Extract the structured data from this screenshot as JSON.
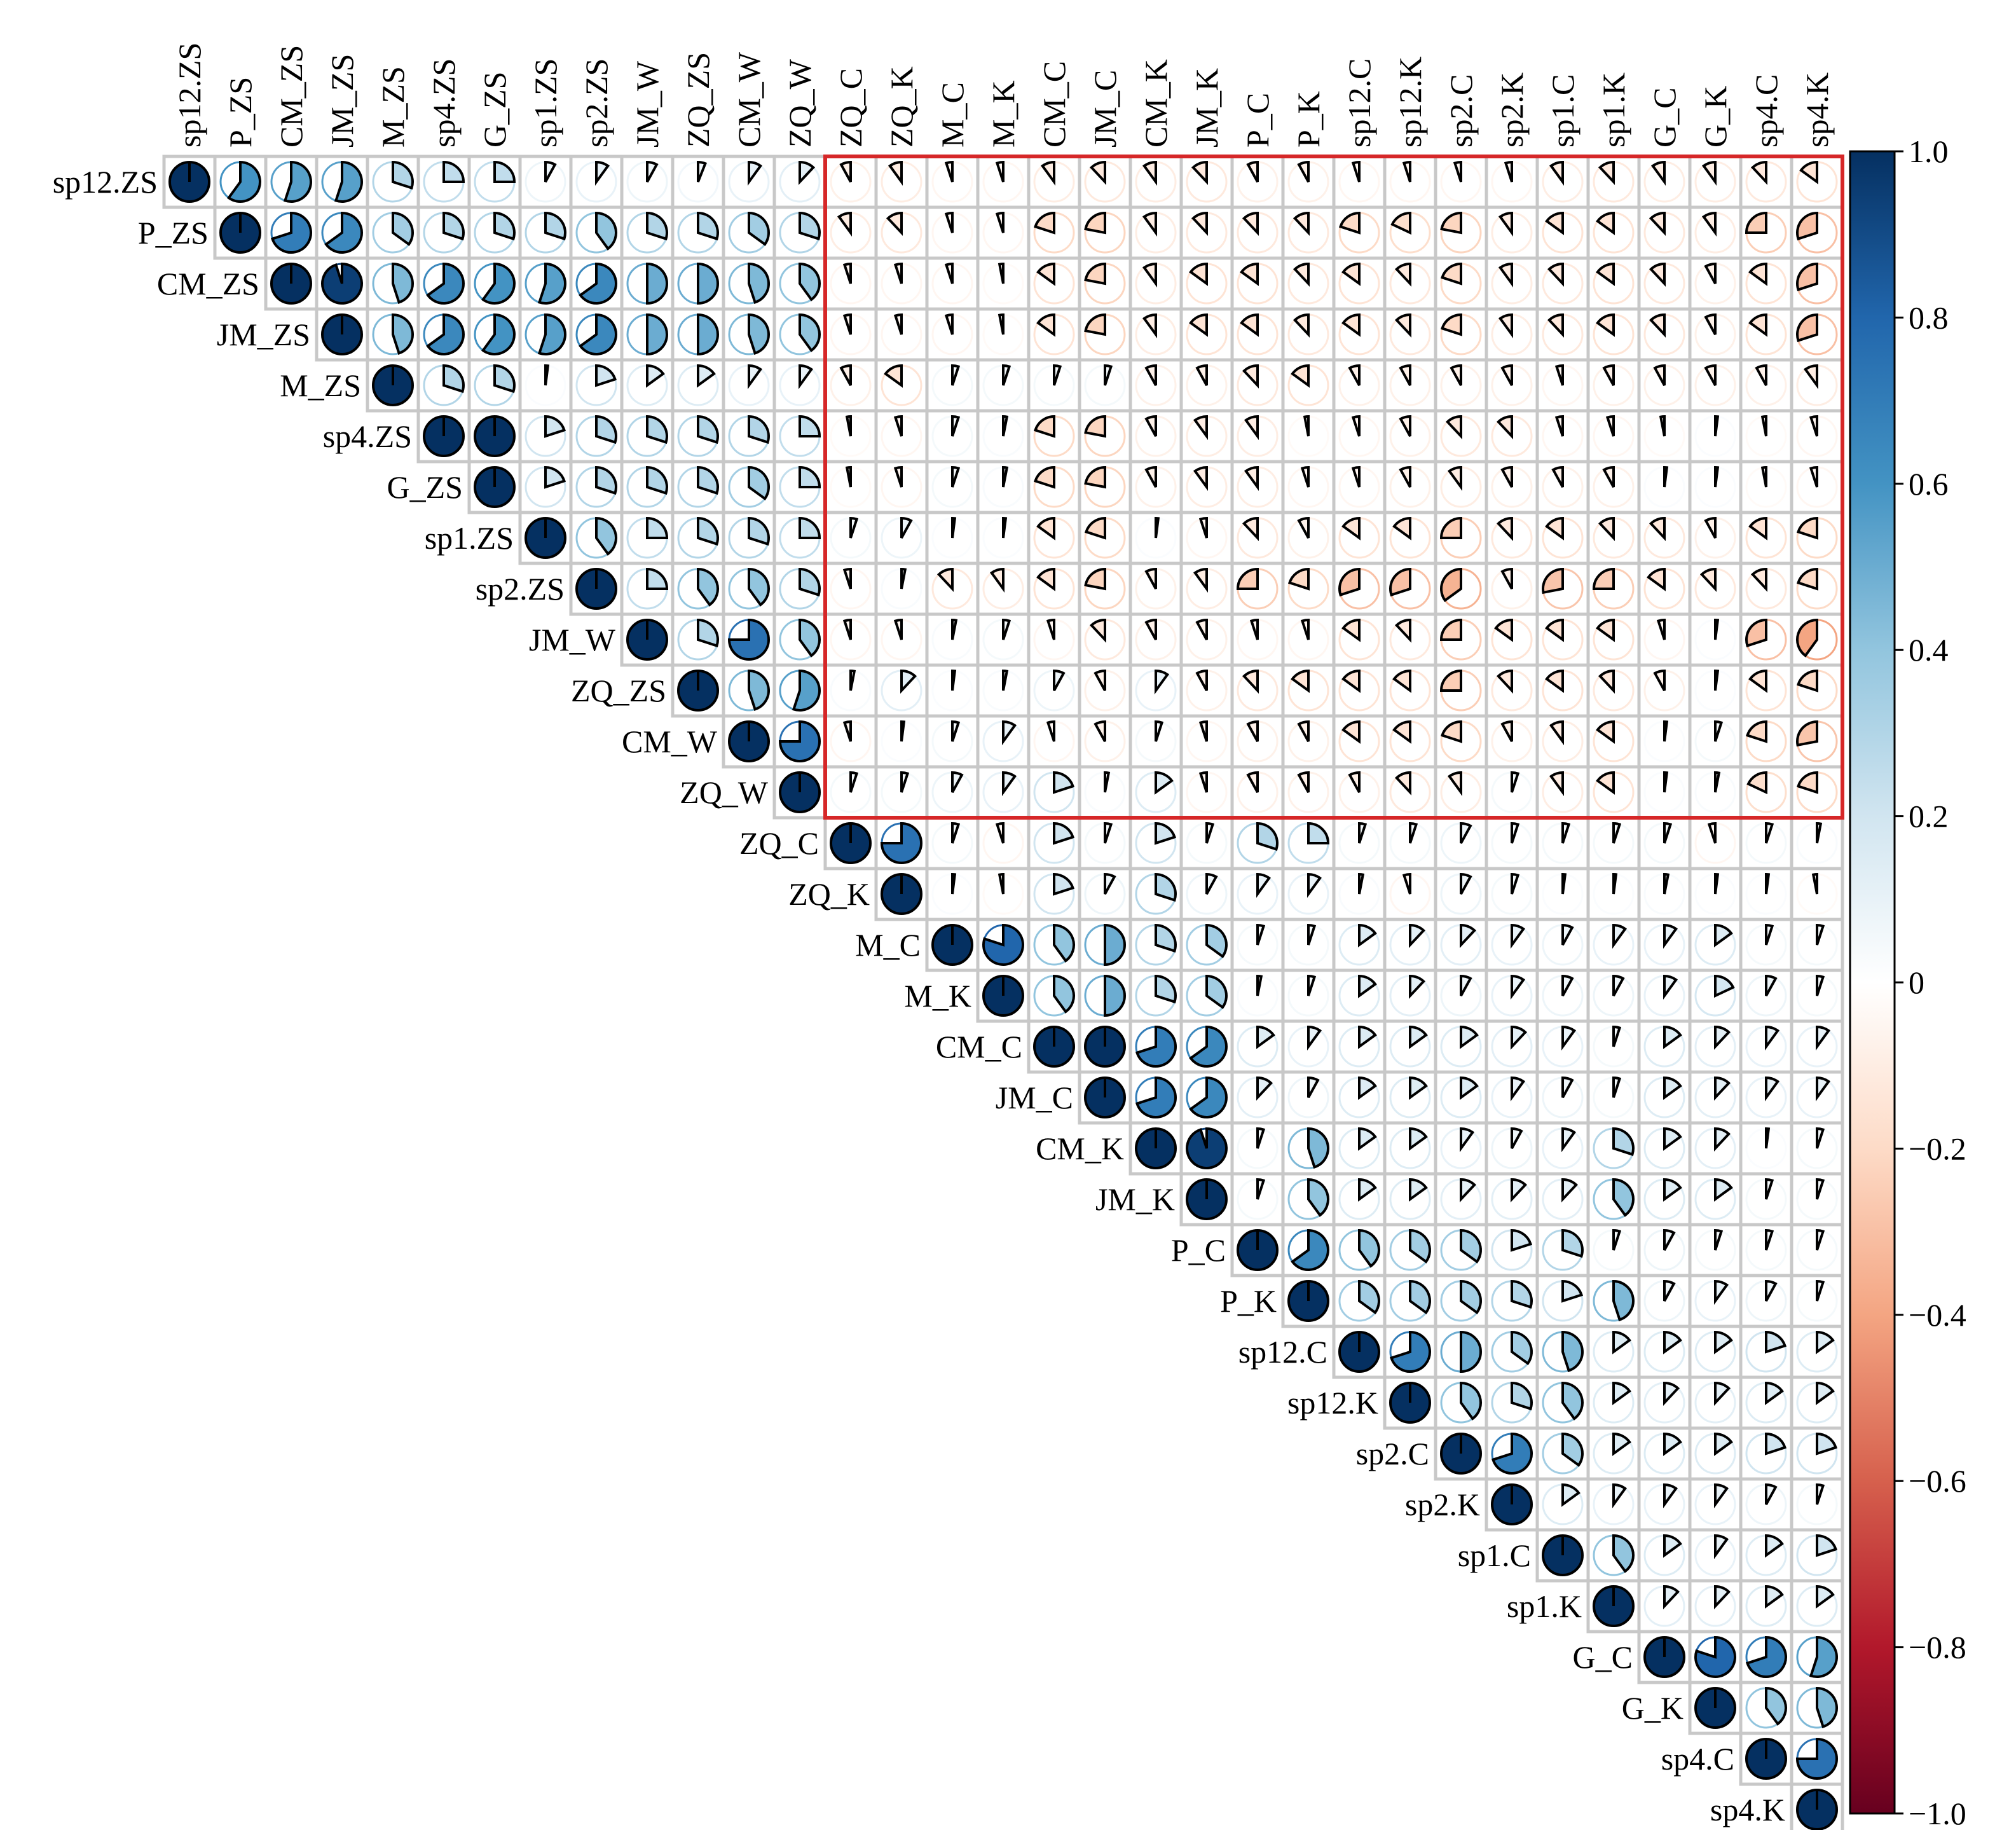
{
  "chart_data": {
    "type": "heatmap",
    "style": "upper-triangle correlation matrix, pie glyphs",
    "variables": [
      "sp12.ZS",
      "P_ZS",
      "CM_ZS",
      "JM_ZS",
      "M_ZS",
      "sp4.ZS",
      "G_ZS",
      "sp1.ZS",
      "sp2.ZS",
      "JM_W",
      "ZQ_ZS",
      "CM_W",
      "ZQ_W",
      "ZQ_C",
      "ZQ_K",
      "M_C",
      "M_K",
      "CM_C",
      "JM_C",
      "CM_K",
      "JM_K",
      "P_C",
      "P_K",
      "sp12.C",
      "sp12.K",
      "sp2.C",
      "sp2.K",
      "sp1.C",
      "sp1.K",
      "G_C",
      "G_K",
      "sp4.C",
      "sp4.K"
    ],
    "matrix": [
      [
        1.0,
        0.6,
        0.55,
        0.55,
        0.3,
        0.25,
        0.25,
        0.08,
        0.1,
        0.08,
        0.06,
        0.1,
        0.12,
        -0.08,
        -0.1,
        -0.05,
        -0.05,
        -0.1,
        -0.12,
        -0.1,
        -0.12,
        -0.08,
        -0.08,
        -0.05,
        -0.05,
        -0.05,
        -0.05,
        -0.1,
        -0.12,
        -0.1,
        -0.1,
        -0.12,
        -0.15
      ],
      [
        0.6,
        1.0,
        0.7,
        0.65,
        0.35,
        0.3,
        0.3,
        0.3,
        0.4,
        0.3,
        0.3,
        0.35,
        0.3,
        -0.1,
        -0.12,
        -0.05,
        -0.05,
        -0.2,
        -0.22,
        -0.1,
        -0.12,
        -0.12,
        -0.12,
        -0.2,
        -0.18,
        -0.22,
        -0.1,
        -0.15,
        -0.15,
        -0.12,
        -0.1,
        -0.25,
        -0.3
      ],
      [
        0.55,
        0.7,
        1.0,
        0.95,
        0.45,
        0.65,
        0.6,
        0.55,
        0.65,
        0.5,
        0.5,
        0.45,
        0.4,
        -0.05,
        -0.05,
        -0.05,
        -0.03,
        -0.15,
        -0.22,
        -0.1,
        -0.15,
        -0.15,
        -0.12,
        -0.15,
        -0.12,
        -0.2,
        -0.1,
        -0.12,
        -0.15,
        -0.12,
        -0.08,
        -0.15,
        -0.3
      ],
      [
        0.55,
        0.65,
        0.95,
        1.0,
        0.45,
        0.65,
        0.6,
        0.55,
        0.65,
        0.5,
        0.5,
        0.45,
        0.4,
        -0.05,
        -0.05,
        -0.05,
        -0.03,
        -0.15,
        -0.22,
        -0.1,
        -0.15,
        -0.15,
        -0.12,
        -0.15,
        -0.12,
        -0.2,
        -0.1,
        -0.12,
        -0.15,
        -0.12,
        -0.08,
        -0.15,
        -0.3
      ],
      [
        0.3,
        0.35,
        0.45,
        0.45,
        1.0,
        0.3,
        0.3,
        0.02,
        0.2,
        0.15,
        0.15,
        0.1,
        0.1,
        -0.08,
        -0.15,
        0.05,
        0.05,
        0.05,
        0.05,
        -0.08,
        -0.08,
        -0.12,
        -0.15,
        -0.08,
        -0.08,
        -0.08,
        -0.08,
        -0.05,
        -0.08,
        -0.08,
        -0.08,
        -0.08,
        -0.1
      ],
      [
        0.25,
        0.3,
        0.65,
        0.65,
        0.3,
        1.0,
        1.0,
        0.2,
        0.3,
        0.3,
        0.3,
        0.3,
        0.25,
        -0.03,
        -0.05,
        0.05,
        0.03,
        -0.2,
        -0.22,
        -0.08,
        -0.1,
        -0.1,
        -0.03,
        -0.05,
        -0.08,
        -0.12,
        -0.12,
        -0.05,
        -0.05,
        -0.03,
        0.02,
        -0.03,
        -0.05
      ],
      [
        0.25,
        0.3,
        0.6,
        0.6,
        0.3,
        1.0,
        1.0,
        0.2,
        0.3,
        0.3,
        0.3,
        0.35,
        0.25,
        -0.03,
        -0.05,
        0.05,
        0.03,
        -0.2,
        -0.22,
        -0.08,
        -0.1,
        -0.1,
        -0.05,
        -0.05,
        -0.08,
        -0.1,
        -0.08,
        -0.08,
        -0.08,
        0.02,
        0.02,
        -0.03,
        -0.05
      ],
      [
        0.08,
        0.3,
        0.55,
        0.55,
        0.02,
        0.2,
        0.2,
        1.0,
        0.4,
        0.25,
        0.3,
        0.3,
        0.25,
        0.05,
        0.08,
        0.02,
        0.02,
        -0.15,
        -0.2,
        0.02,
        -0.05,
        -0.12,
        -0.08,
        -0.15,
        -0.15,
        -0.25,
        -0.12,
        -0.15,
        -0.12,
        -0.12,
        -0.08,
        -0.15,
        -0.2
      ],
      [
        0.1,
        0.4,
        0.65,
        0.65,
        0.2,
        0.3,
        0.3,
        0.4,
        1.0,
        0.25,
        0.4,
        0.4,
        0.3,
        -0.05,
        0.03,
        -0.12,
        -0.1,
        -0.15,
        -0.22,
        -0.08,
        -0.1,
        -0.25,
        -0.2,
        -0.3,
        -0.3,
        -0.35,
        -0.08,
        -0.28,
        -0.25,
        -0.15,
        -0.12,
        -0.12,
        -0.2
      ],
      [
        0.08,
        0.3,
        0.5,
        0.5,
        0.15,
        0.3,
        0.3,
        0.25,
        0.25,
        1.0,
        0.3,
        0.75,
        0.4,
        -0.05,
        -0.05,
        0.03,
        0.05,
        -0.05,
        -0.12,
        -0.08,
        -0.08,
        -0.05,
        -0.05,
        -0.15,
        -0.12,
        -0.25,
        -0.15,
        -0.15,
        -0.15,
        -0.05,
        0.02,
        -0.3,
        -0.4
      ],
      [
        0.06,
        0.3,
        0.5,
        0.5,
        0.15,
        0.3,
        0.3,
        0.3,
        0.4,
        0.3,
        1.0,
        0.45,
        0.55,
        0.03,
        0.12,
        0.02,
        0.03,
        0.08,
        -0.08,
        0.1,
        -0.08,
        -0.12,
        -0.15,
        -0.15,
        -0.15,
        -0.25,
        -0.12,
        -0.15,
        -0.12,
        -0.08,
        0.02,
        -0.15,
        -0.2
      ],
      [
        0.1,
        0.35,
        0.45,
        0.45,
        0.1,
        0.3,
        0.35,
        0.3,
        0.4,
        0.75,
        0.45,
        1.0,
        0.75,
        -0.05,
        0.02,
        0.05,
        0.1,
        -0.05,
        -0.08,
        0.05,
        -0.05,
        -0.08,
        -0.08,
        -0.15,
        -0.15,
        -0.2,
        -0.08,
        -0.1,
        -0.15,
        0.02,
        0.05,
        -0.2,
        -0.28
      ],
      [
        0.12,
        0.3,
        0.4,
        0.4,
        0.1,
        0.25,
        0.25,
        0.25,
        0.3,
        0.4,
        0.55,
        0.75,
        1.0,
        0.05,
        0.05,
        0.08,
        0.1,
        0.2,
        0.03,
        0.15,
        -0.05,
        -0.08,
        -0.08,
        -0.08,
        -0.12,
        -0.1,
        0.05,
        -0.1,
        -0.15,
        0.02,
        0.03,
        -0.18,
        -0.2
      ],
      [
        -0.08,
        -0.1,
        -0.05,
        -0.05,
        -0.08,
        -0.03,
        -0.03,
        0.05,
        -0.05,
        -0.05,
        0.03,
        -0.05,
        0.05,
        1.0,
        0.75,
        0.05,
        -0.05,
        0.2,
        0.05,
        0.2,
        0.05,
        0.3,
        0.25,
        0.05,
        0.05,
        0.08,
        0.05,
        0.05,
        0.05,
        0.05,
        -0.05,
        0.05,
        0.03
      ],
      [
        -0.1,
        -0.12,
        -0.05,
        -0.05,
        -0.15,
        -0.05,
        -0.05,
        0.08,
        0.03,
        -0.05,
        0.12,
        0.02,
        0.05,
        0.75,
        1.0,
        0.02,
        -0.03,
        0.2,
        0.08,
        0.3,
        0.08,
        0.1,
        0.1,
        0.03,
        -0.05,
        0.08,
        0.05,
        0.02,
        0.02,
        0.03,
        0.02,
        0.02,
        -0.03
      ],
      [
        -0.05,
        -0.05,
        -0.05,
        -0.05,
        0.05,
        0.05,
        0.05,
        0.02,
        -0.12,
        0.03,
        0.02,
        0.05,
        0.08,
        0.05,
        0.02,
        1.0,
        0.8,
        0.4,
        0.5,
        0.3,
        0.35,
        0.05,
        0.05,
        0.15,
        0.12,
        0.12,
        0.1,
        0.08,
        0.1,
        0.1,
        0.15,
        0.05,
        0.05
      ],
      [
        -0.05,
        -0.05,
        -0.03,
        -0.03,
        0.05,
        0.03,
        0.03,
        0.02,
        -0.1,
        0.05,
        0.03,
        0.1,
        0.1,
        -0.05,
        -0.03,
        0.8,
        1.0,
        0.4,
        0.5,
        0.3,
        0.35,
        0.03,
        0.05,
        0.15,
        0.12,
        0.08,
        0.1,
        0.08,
        0.08,
        0.1,
        0.18,
        0.08,
        0.05
      ],
      [
        -0.1,
        -0.2,
        -0.15,
        -0.15,
        0.05,
        -0.2,
        -0.2,
        -0.15,
        -0.15,
        -0.05,
        0.08,
        -0.05,
        0.2,
        0.2,
        0.2,
        0.4,
        0.4,
        1.0,
        1.0,
        0.7,
        0.65,
        0.15,
        0.1,
        0.15,
        0.15,
        0.15,
        0.12,
        0.1,
        0.05,
        0.15,
        0.12,
        0.1,
        0.1
      ],
      [
        -0.12,
        -0.22,
        -0.22,
        -0.22,
        0.05,
        -0.22,
        -0.22,
        -0.2,
        -0.22,
        -0.12,
        -0.08,
        -0.08,
        0.03,
        0.05,
        0.08,
        0.5,
        0.5,
        1.0,
        1.0,
        0.7,
        0.65,
        0.12,
        0.08,
        0.15,
        0.15,
        0.15,
        0.1,
        0.08,
        0.05,
        0.15,
        0.12,
        0.1,
        0.1
      ],
      [
        -0.1,
        -0.1,
        -0.1,
        -0.1,
        -0.08,
        -0.08,
        -0.08,
        0.02,
        -0.08,
        -0.08,
        0.1,
        0.05,
        0.15,
        0.2,
        0.3,
        0.3,
        0.3,
        0.7,
        0.7,
        1.0,
        0.95,
        0.05,
        0.45,
        0.15,
        0.15,
        0.1,
        0.08,
        0.1,
        0.3,
        0.15,
        0.12,
        0.02,
        0.05
      ],
      [
        -0.12,
        -0.12,
        -0.15,
        -0.15,
        -0.08,
        -0.1,
        -0.1,
        -0.05,
        -0.1,
        -0.08,
        -0.08,
        -0.05,
        -0.05,
        0.05,
        0.08,
        0.35,
        0.35,
        0.65,
        0.65,
        0.95,
        1.0,
        0.05,
        0.4,
        0.15,
        0.15,
        0.12,
        0.12,
        0.12,
        0.4,
        0.15,
        0.15,
        0.05,
        0.05
      ],
      [
        -0.08,
        -0.12,
        -0.15,
        -0.15,
        -0.12,
        -0.1,
        -0.1,
        -0.12,
        -0.25,
        -0.05,
        -0.12,
        -0.08,
        -0.08,
        0.3,
        0.1,
        0.05,
        0.03,
        0.15,
        0.12,
        0.05,
        0.05,
        1.0,
        0.65,
        0.4,
        0.35,
        0.35,
        0.2,
        0.3,
        0.05,
        0.08,
        0.05,
        0.05,
        0.05
      ],
      [
        -0.08,
        -0.12,
        -0.12,
        -0.12,
        -0.15,
        -0.03,
        -0.05,
        -0.08,
        -0.2,
        -0.05,
        -0.15,
        -0.08,
        -0.08,
        0.25,
        0.1,
        0.05,
        0.05,
        0.1,
        0.08,
        0.45,
        0.4,
        0.65,
        1.0,
        0.35,
        0.35,
        0.35,
        0.3,
        0.2,
        0.45,
        0.08,
        0.1,
        0.08,
        0.05
      ],
      [
        -0.05,
        -0.2,
        -0.15,
        -0.15,
        -0.08,
        -0.05,
        -0.05,
        -0.15,
        -0.3,
        -0.15,
        -0.15,
        -0.15,
        -0.08,
        0.05,
        0.03,
        0.15,
        0.15,
        0.15,
        0.15,
        0.15,
        0.15,
        0.4,
        0.35,
        1.0,
        0.7,
        0.5,
        0.35,
        0.45,
        0.15,
        0.15,
        0.15,
        0.2,
        0.15
      ],
      [
        -0.05,
        -0.18,
        -0.12,
        -0.12,
        -0.08,
        -0.08,
        -0.08,
        -0.15,
        -0.3,
        -0.12,
        -0.15,
        -0.15,
        -0.12,
        0.05,
        -0.05,
        0.12,
        0.12,
        0.15,
        0.15,
        0.15,
        0.15,
        0.35,
        0.35,
        0.7,
        1.0,
        0.4,
        0.3,
        0.4,
        0.15,
        0.12,
        0.12,
        0.15,
        0.15
      ],
      [
        -0.05,
        -0.22,
        -0.2,
        -0.2,
        -0.08,
        -0.12,
        -0.1,
        -0.25,
        -0.35,
        -0.25,
        -0.25,
        -0.2,
        -0.1,
        0.08,
        0.08,
        0.12,
        0.08,
        0.15,
        0.15,
        0.1,
        0.12,
        0.35,
        0.35,
        0.5,
        0.4,
        1.0,
        0.7,
        0.35,
        0.15,
        0.15,
        0.15,
        0.2,
        0.2
      ],
      [
        -0.05,
        -0.1,
        -0.1,
        -0.1,
        -0.08,
        -0.12,
        -0.08,
        -0.12,
        -0.08,
        -0.15,
        -0.12,
        -0.08,
        0.05,
        0.05,
        0.05,
        0.1,
        0.1,
        0.12,
        0.1,
        0.08,
        0.12,
        0.2,
        0.3,
        0.35,
        0.3,
        0.7,
        1.0,
        0.15,
        0.1,
        0.1,
        0.1,
        0.08,
        0.05
      ],
      [
        -0.1,
        -0.15,
        -0.12,
        -0.12,
        -0.05,
        -0.05,
        -0.08,
        -0.15,
        -0.28,
        -0.15,
        -0.15,
        -0.1,
        -0.1,
        0.05,
        0.02,
        0.08,
        0.08,
        0.1,
        0.08,
        0.1,
        0.12,
        0.3,
        0.2,
        0.45,
        0.4,
        0.35,
        0.15,
        1.0,
        0.4,
        0.15,
        0.1,
        0.15,
        0.2
      ],
      [
        -0.12,
        -0.15,
        -0.15,
        -0.15,
        -0.08,
        -0.05,
        -0.08,
        -0.12,
        -0.25,
        -0.15,
        -0.12,
        -0.15,
        -0.15,
        0.05,
        0.02,
        0.1,
        0.08,
        0.05,
        0.05,
        0.3,
        0.4,
        0.05,
        0.45,
        0.15,
        0.15,
        0.15,
        0.1,
        0.4,
        1.0,
        0.12,
        0.12,
        0.15,
        0.15
      ],
      [
        -0.1,
        -0.12,
        -0.12,
        -0.12,
        -0.08,
        -0.03,
        0.02,
        -0.12,
        -0.15,
        -0.05,
        -0.08,
        0.02,
        0.02,
        0.05,
        0.03,
        0.1,
        0.1,
        0.15,
        0.15,
        0.15,
        0.15,
        0.08,
        0.08,
        0.15,
        0.12,
        0.15,
        0.1,
        0.15,
        0.12,
        1.0,
        0.8,
        0.7,
        0.55
      ],
      [
        -0.1,
        -0.1,
        -0.08,
        -0.08,
        -0.08,
        0.02,
        0.02,
        -0.08,
        -0.12,
        0.02,
        0.02,
        0.05,
        0.03,
        -0.05,
        0.02,
        0.15,
        0.18,
        0.12,
        0.12,
        0.12,
        0.15,
        0.05,
        0.1,
        0.15,
        0.12,
        0.15,
        0.1,
        0.1,
        0.12,
        0.8,
        1.0,
        0.4,
        0.45
      ],
      [
        -0.12,
        -0.25,
        -0.15,
        -0.15,
        -0.08,
        -0.03,
        -0.03,
        -0.15,
        -0.12,
        -0.3,
        -0.15,
        -0.2,
        -0.18,
        0.05,
        0.02,
        0.05,
        0.08,
        0.1,
        0.1,
        0.02,
        0.05,
        0.05,
        0.08,
        0.2,
        0.15,
        0.2,
        0.08,
        0.15,
        0.15,
        0.7,
        0.4,
        1.0,
        0.75
      ],
      [
        -0.15,
        -0.3,
        -0.3,
        -0.3,
        -0.1,
        -0.05,
        -0.05,
        -0.2,
        -0.2,
        -0.4,
        -0.2,
        -0.28,
        -0.2,
        0.03,
        -0.03,
        0.05,
        0.05,
        0.1,
        0.1,
        0.05,
        0.05,
        0.05,
        0.05,
        0.15,
        0.15,
        0.2,
        0.05,
        0.2,
        0.15,
        0.55,
        0.45,
        0.75,
        1.0
      ]
    ],
    "color_scale": {
      "min": -1.0,
      "max": 1.0,
      "ticks": [
        1.0,
        0.8,
        0.6,
        0.4,
        0.2,
        0,
        -0.2,
        -0.4,
        -0.6,
        -0.8,
        -1.0
      ],
      "tick_labels": [
        "1.0",
        "0.8",
        "0.6",
        "0.4",
        "0.2",
        "0",
        "−0.2",
        "−0.4",
        "−0.6",
        "−0.8",
        "−1.0"
      ],
      "palette": "RdBu",
      "colors": [
        "#67001f",
        "#b2182b",
        "#d6604d",
        "#f4a582",
        "#fddbc7",
        "#ffffff",
        "#d1e5f0",
        "#92c5de",
        "#4393c3",
        "#2166ac",
        "#053061"
      ]
    },
    "highlight_box": {
      "rows": [
        "sp12.ZS",
        "ZQ_W"
      ],
      "cols": [
        "ZQ_C",
        "sp4.K"
      ],
      "color": "#d62728"
    },
    "grid": true,
    "legend": "colorbar-right"
  }
}
